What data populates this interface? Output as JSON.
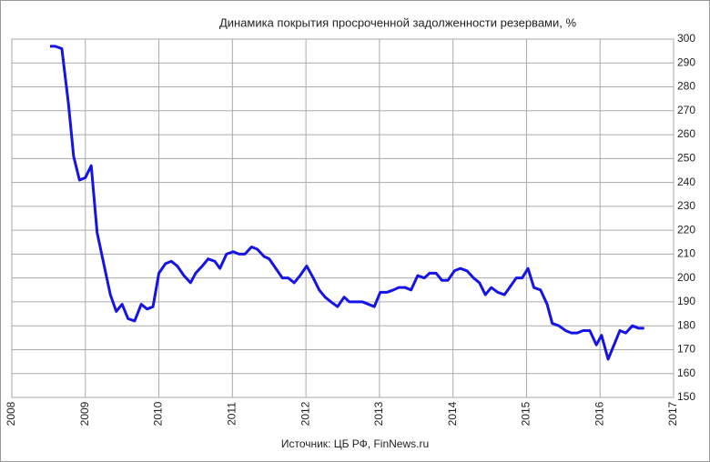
{
  "chart_data": {
    "type": "line",
    "title": "Динамика покрытия просроченной задолженности резервами, %",
    "source": "Источник: ЦБ РФ, FinNews.ru",
    "xlim": [
      2008,
      2017
    ],
    "xticks": [
      2008,
      2009,
      2010,
      2011,
      2012,
      2013,
      2014,
      2015,
      2016,
      2017
    ],
    "ylim": [
      150,
      300
    ],
    "yticks": [
      150,
      160,
      170,
      180,
      190,
      200,
      210,
      220,
      230,
      240,
      250,
      260,
      270,
      280,
      290,
      300
    ],
    "grid": true,
    "y_axis_side": "right",
    "series": [
      {
        "color": "#1414e6",
        "x": [
          2008.52,
          2008.59,
          2008.68,
          2008.77,
          2008.84,
          2008.92,
          2009.0,
          2009.08,
          2009.16,
          2009.25,
          2009.34,
          2009.42,
          2009.5,
          2009.58,
          2009.67,
          2009.76,
          2009.84,
          2009.92,
          2010.0,
          2010.09,
          2010.17,
          2010.25,
          2010.34,
          2010.43,
          2010.5,
          2010.59,
          2010.67,
          2010.76,
          2010.83,
          2010.92,
          2011.01,
          2011.09,
          2011.17,
          2011.26,
          2011.34,
          2011.43,
          2011.5,
          2011.59,
          2011.68,
          2011.76,
          2011.84,
          2011.92,
          2012.01,
          2012.1,
          2012.18,
          2012.26,
          2012.34,
          2012.43,
          2012.52,
          2012.59,
          2012.68,
          2012.77,
          2012.85,
          2012.93,
          2013.01,
          2013.1,
          2013.19,
          2013.26,
          2013.35,
          2013.43,
          2013.52,
          2013.61,
          2013.68,
          2013.77,
          2013.85,
          2013.93,
          2014.02,
          2014.1,
          2014.19,
          2014.28,
          2014.36,
          2014.44,
          2014.52,
          2014.61,
          2014.7,
          2014.77,
          2014.86,
          2014.94,
          2015.02,
          2015.1,
          2015.19,
          2015.28,
          2015.35,
          2015.44,
          2015.53,
          2015.61,
          2015.69,
          2015.77,
          2015.86,
          2015.95,
          2016.02,
          2016.11,
          2016.19,
          2016.27,
          2016.35,
          2016.44,
          2016.52,
          2016.6
        ],
        "values": [
          297,
          297,
          296,
          273,
          251,
          241,
          242,
          247,
          219,
          206,
          193,
          186,
          189,
          183,
          182,
          189,
          187,
          188,
          202,
          206,
          207,
          205,
          201,
          198,
          202,
          205,
          208,
          207,
          204,
          210,
          211,
          210,
          210,
          213,
          212,
          209,
          208,
          204,
          200,
          200,
          198,
          201,
          205,
          200,
          195,
          192,
          190,
          188,
          192,
          190,
          190,
          190,
          189,
          188,
          194,
          194,
          195,
          196,
          196,
          195,
          201,
          200,
          202,
          202,
          199,
          199,
          203,
          204,
          203,
          200,
          198,
          193,
          196,
          194,
          193,
          196,
          200,
          200,
          204,
          196,
          195,
          189,
          181,
          180,
          178,
          177,
          177,
          178,
          178,
          172,
          176,
          166,
          172,
          178,
          177,
          180,
          179,
          179
        ]
      }
    ]
  }
}
